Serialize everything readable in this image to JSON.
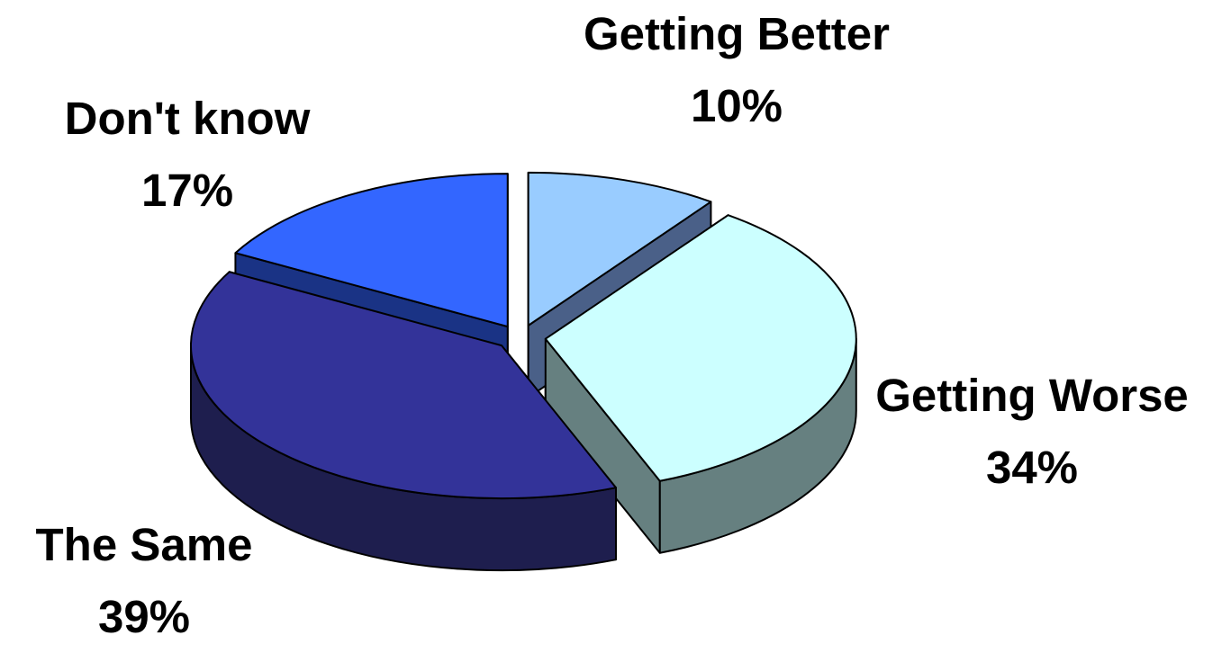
{
  "chart_data": {
    "type": "pie",
    "style": "3d-exploded",
    "slices": [
      {
        "label": "Getting Better",
        "value": 10,
        "display": "10%",
        "color": "#99CCFF",
        "side_color": "#4A6088"
      },
      {
        "label": "Getting Worse",
        "value": 34,
        "display": "34%",
        "color": "#CCFFFF",
        "side_color": "#668080"
      },
      {
        "label": "The Same",
        "value": 39,
        "display": "39%",
        "color": "#333399",
        "side_color": "#1E1E4E"
      },
      {
        "label": "Don't know",
        "value": 17,
        "display": "17%",
        "color": "#3366FF",
        "side_color": "#1A3385"
      }
    ],
    "legend": "none",
    "data_labels": "category and percent"
  }
}
